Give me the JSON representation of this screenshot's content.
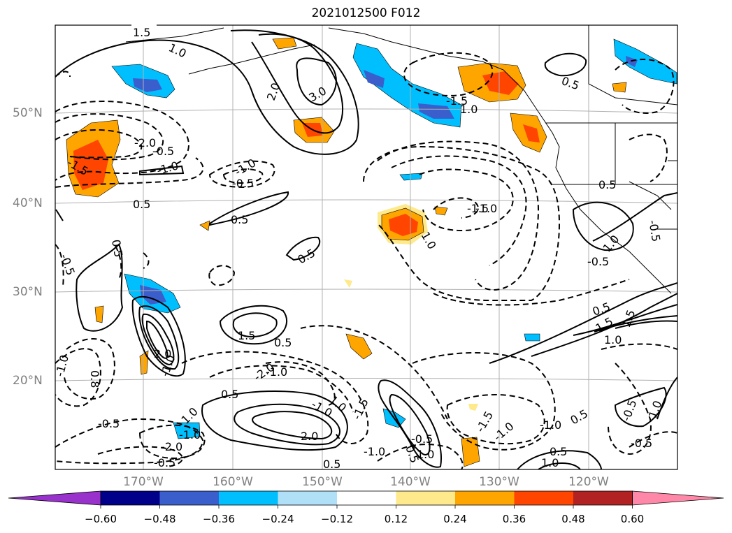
{
  "title": "2021012500 F012",
  "map": {
    "projection": "Lambert conformal (North Pacific)",
    "lat_labels": [
      "50°N",
      "40°N",
      "30°N",
      "20°N"
    ],
    "lon_labels": [
      "170°W",
      "160°W",
      "150°W",
      "140°W",
      "130°W",
      "120°W"
    ],
    "contour_labels": [
      "1.5",
      "1.0",
      "-1.5",
      "2.0",
      "3.0",
      "-2.0",
      "-0.5",
      "-1.5",
      "-1.0",
      "0.5",
      "0.5",
      "-1.0",
      "-1.5",
      "0.5",
      "1.0",
      "-0.5",
      "0.5",
      "0.5",
      "1.0",
      "-0.5",
      "1.5",
      "-1.0",
      "0.5",
      "-0.5",
      "2.0",
      "1.0",
      "1.5",
      "0.5",
      "-1.0",
      "-1.0",
      "-1.5",
      "-0.5",
      "1.0",
      "1.0",
      "-2.0",
      "2.0",
      "-1.0",
      "-0.5",
      "-0.5",
      "-1.5",
      "-1.0",
      "0.5",
      "0.5",
      "0.5",
      "-1.0",
      "1.0",
      "0.5",
      "0.5",
      "-2.0",
      "-1.0",
      "0.5",
      "-0.5",
      "1.0",
      "0.8",
      "1.0",
      "1.0",
      "-0.5",
      "-0.5",
      "-1.0",
      "1.5",
      "-1.0"
    ],
    "line_color": "#000000",
    "grid_color": "#b0b0b0"
  },
  "colorbar": {
    "ticks": [
      "−0.60",
      "−0.48",
      "−0.36",
      "−0.24",
      "−0.12",
      "0.12",
      "0.24",
      "0.36",
      "0.48",
      "0.60"
    ],
    "colors": [
      "#9932cc",
      "#00008b",
      "#3a5fcd",
      "#00bfff",
      "#b0e0f7",
      "#ffffff",
      "#fee98b",
      "#ffa500",
      "#ff4500",
      "#b22222",
      "#ff88a8"
    ]
  }
}
